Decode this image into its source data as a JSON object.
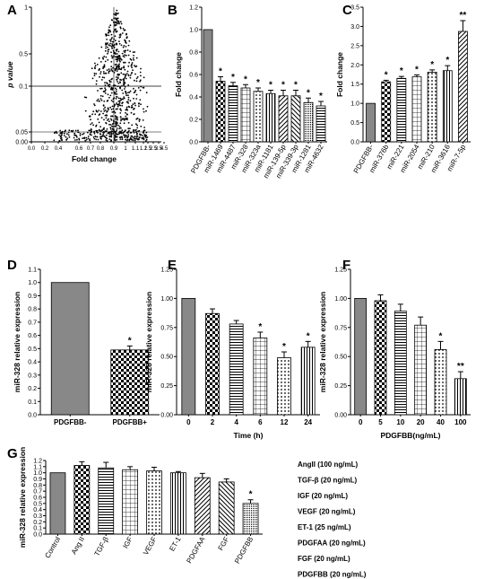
{
  "panel_letters": [
    "A",
    "B",
    "C",
    "D",
    "E",
    "F",
    "G"
  ],
  "chart_data": [
    {
      "panel": "A",
      "type": "scatter",
      "xlabel": "Fold change",
      "ylabel": "p value",
      "x_ticks": [
        "0.0",
        "0.2",
        "0.4",
        "0.6",
        "0.7",
        "0.8",
        "0.9",
        "1",
        "1.1",
        "1.2",
        "1.5",
        "2.5",
        "3.5",
        "4.5"
      ],
      "y_ticks": [
        "0.00",
        "0.05",
        "0.1",
        "0.5",
        "1"
      ],
      "grid": false
    },
    {
      "panel": "B",
      "type": "bar",
      "ylabel": "Fold change",
      "ylim": [
        0,
        1.2
      ],
      "y_ticks": [
        "0.0",
        "0.2",
        "0.4",
        "0.6",
        "0.8",
        "1.0",
        "1.2"
      ],
      "categories": [
        "PDGFBB-",
        "miR-1469",
        "miR-4487",
        "miR-328",
        "miR-323a",
        "miR-1181",
        "miR-139-5p",
        "miR-339-3p",
        "miR-1281",
        "miR-4632"
      ],
      "values": [
        1.0,
        0.54,
        0.5,
        0.48,
        0.45,
        0.43,
        0.41,
        0.41,
        0.35,
        0.32
      ],
      "errors": [
        0,
        0.04,
        0.03,
        0.03,
        0.03,
        0.03,
        0.05,
        0.05,
        0.04,
        0.04
      ],
      "significance": [
        "",
        "*",
        "*",
        "*",
        "*",
        "*",
        "*",
        "*",
        "*",
        "*"
      ]
    },
    {
      "panel": "C",
      "type": "bar",
      "ylabel": "Fold change",
      "ylim": [
        0,
        3.5
      ],
      "y_ticks": [
        "0.0",
        "0.5",
        "1.0",
        "1.5",
        "2.0",
        "2.5",
        "3.0",
        "3.5"
      ],
      "categories": [
        "PDGFBB-",
        "miR-376b",
        "miR-221",
        "miR-2054",
        "miR-210",
        "miR-3616",
        "miR-7-5p"
      ],
      "values": [
        1.0,
        1.56,
        1.65,
        1.69,
        1.81,
        1.85,
        2.87
      ],
      "errors": [
        0,
        0.04,
        0.05,
        0.05,
        0.06,
        0.13,
        0.28
      ],
      "significance": [
        "",
        "*",
        "*",
        "*",
        "*",
        "*",
        "**"
      ]
    },
    {
      "panel": "D",
      "type": "bar",
      "ylabel": "miR-328 relative expression",
      "ylim": [
        0,
        1.1
      ],
      "y_ticks": [
        "0.0",
        "0.1",
        "0.2",
        "0.3",
        "0.4",
        "0.5",
        "0.6",
        "0.7",
        "0.8",
        "0.9",
        "1.0",
        "1.1"
      ],
      "categories": [
        "PDGFBB-",
        "PDGFBB+"
      ],
      "values": [
        1.0,
        0.49
      ],
      "errors": [
        0,
        0.03
      ],
      "significance": [
        "",
        "*"
      ]
    },
    {
      "panel": "E",
      "type": "bar",
      "xlabel": "Time (h)",
      "ylabel": "miR-328 relative expression",
      "ylim": [
        0,
        1.2
      ],
      "y_ticks": [
        "0.00",
        "0.25",
        "0.50",
        "0.75",
        "1.00",
        "1.25"
      ],
      "categories": [
        "0",
        "2",
        "4",
        "6",
        "12",
        "24"
      ],
      "values": [
        1.0,
        0.87,
        0.78,
        0.66,
        0.49,
        0.58
      ],
      "errors": [
        0,
        0.04,
        0.03,
        0.05,
        0.05,
        0.05
      ],
      "significance": [
        "",
        "",
        "",
        "*",
        "*",
        "*"
      ]
    },
    {
      "panel": "F",
      "type": "bar",
      "xlabel": "PDGFBB(ng/mL)",
      "ylabel": "miR-328 relative expression",
      "ylim": [
        0,
        1.2
      ],
      "y_ticks": [
        "0.00",
        "0.25",
        "0.50",
        "0.75",
        "1.00",
        "1.25"
      ],
      "categories": [
        "0",
        "5",
        "10",
        "20",
        "40",
        "100"
      ],
      "values": [
        1.0,
        0.98,
        0.89,
        0.77,
        0.56,
        0.31
      ],
      "errors": [
        0,
        0.05,
        0.06,
        0.07,
        0.07,
        0.06
      ],
      "significance": [
        "",
        "",
        "",
        "",
        "*",
        "**"
      ]
    },
    {
      "panel": "G",
      "type": "bar",
      "ylabel": "miR-328 relative expression",
      "ylim": [
        0,
        1.2
      ],
      "y_ticks": [
        "0.0",
        "0.1",
        "0.2",
        "0.3",
        "0.4",
        "0.5",
        "0.6",
        "0.7",
        "0.8",
        "0.9",
        "1.0",
        "1.1",
        "1.2"
      ],
      "categories": [
        "Control",
        "Ang II",
        "TGF-β",
        "IGF",
        "VEGF",
        "ET-1",
        "PDGFAA",
        "FGF",
        "PDGFBB"
      ],
      "values": [
        1.0,
        1.12,
        1.08,
        1.05,
        1.03,
        1.0,
        0.92,
        0.85,
        0.5
      ],
      "errors": [
        0,
        0.06,
        0.09,
        0.05,
        0.06,
        0.02,
        0.07,
        0.05,
        0.06
      ],
      "significance": [
        "",
        "",
        "",
        "",
        "",
        "",
        "",
        "",
        "*"
      ],
      "legend": [
        "AngII (100 ng/mL)",
        "TGF-β (20 ng/mL)",
        "IGF (20 ng/mL)",
        "VEGF (20 ng/mL)",
        "ET-1 (25 ng/mL)",
        "PDGFAA (20 ng/mL)",
        "FGF (20 ng/mL)",
        "PDGFBB (20 ng/mL)"
      ]
    }
  ]
}
